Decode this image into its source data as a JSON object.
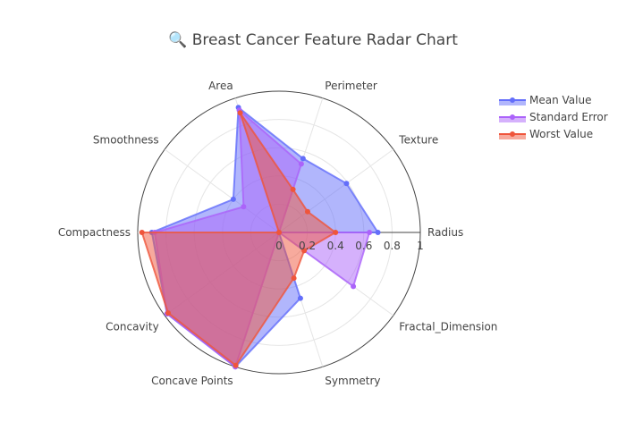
{
  "chart_data": {
    "type": "radar",
    "title": "🔍 Breast Cancer Feature Radar Chart",
    "categories": [
      "Radius",
      "Texture",
      "Perimeter",
      "Area",
      "Smoothness",
      "Compactness",
      "Concavity",
      "Concave Points",
      "Symmetry",
      "Fractal_Dimension"
    ],
    "radial_range": [
      0,
      1
    ],
    "radial_ticks": [
      "0",
      "0.2",
      "0.4",
      "0.6",
      "0.8",
      "1"
    ],
    "radial_tick_values": [
      0,
      0.2,
      0.4,
      0.6,
      0.8,
      1
    ],
    "legend_position": "top-right",
    "series": [
      {
        "name": "Mean Value",
        "color": "#636efa",
        "values": [
          0.7,
          0.59,
          0.55,
          0.93,
          0.4,
          0.9,
          0.98,
          1.0,
          0.49,
          0.0
        ]
      },
      {
        "name": "Standard Error",
        "color": "#ab63fa",
        "values": [
          0.64,
          0.0,
          0.51,
          0.91,
          0.31,
          0.88,
          0.98,
          1.0,
          0.0,
          0.65
        ]
      },
      {
        "name": "Worst Value",
        "color": "#ef553b",
        "values": [
          0.4,
          0.25,
          0.32,
          0.89,
          0.0,
          0.97,
          0.97,
          0.99,
          0.34,
          0.22
        ]
      }
    ]
  }
}
